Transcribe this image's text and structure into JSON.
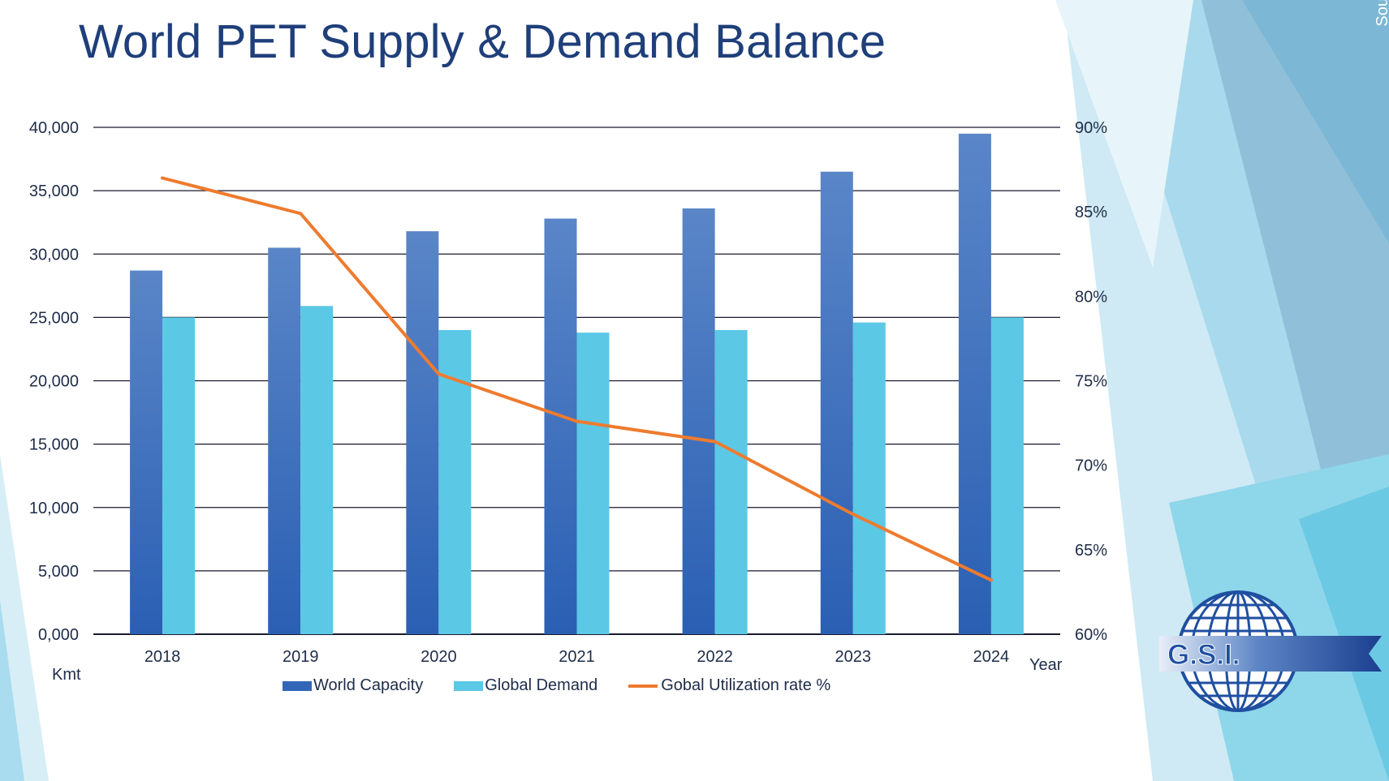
{
  "title": "World PET Supply & Demand Balance",
  "source": "Source: Tecnon OrbiChem + GSI",
  "logo_text": "G.S.I.",
  "colors": {
    "capacity": "#3267b8",
    "demand": "#5bc8e6",
    "utilization": "#ee7b2f",
    "title": "#1f3f7a",
    "gridline": "#1a1a2e"
  },
  "chart_data": {
    "type": "bar",
    "categories": [
      "2018",
      "2019",
      "2020",
      "2021",
      "2022",
      "2023",
      "2024"
    ],
    "series": [
      {
        "name": "World Capacity",
        "type": "bar",
        "axis": "left",
        "values": [
          28700,
          30500,
          31800,
          32800,
          33600,
          36500,
          39500
        ]
      },
      {
        "name": "Global Demand",
        "type": "bar",
        "axis": "left",
        "values": [
          25000,
          25900,
          24000,
          23800,
          24000,
          24600,
          25000
        ]
      },
      {
        "name": "Gobal Utilization rate %",
        "type": "line",
        "axis": "right",
        "values": [
          87.0,
          84.9,
          75.4,
          72.6,
          71.4,
          67.1,
          63.2
        ]
      }
    ],
    "y_left": {
      "label": "Kmt",
      "min": 0,
      "max": 40000,
      "ticks": [
        "0,000",
        "5,000",
        "10,000",
        "15,000",
        "20,000",
        "25,000",
        "30,000",
        "35,000",
        "40,000"
      ]
    },
    "y_right": {
      "min": 60,
      "max": 90,
      "ticks": [
        "60%",
        "65%",
        "70%",
        "75%",
        "80%",
        "85%",
        "90%"
      ]
    },
    "xlabel": "Year",
    "grid": true,
    "legend_position": "bottom"
  }
}
